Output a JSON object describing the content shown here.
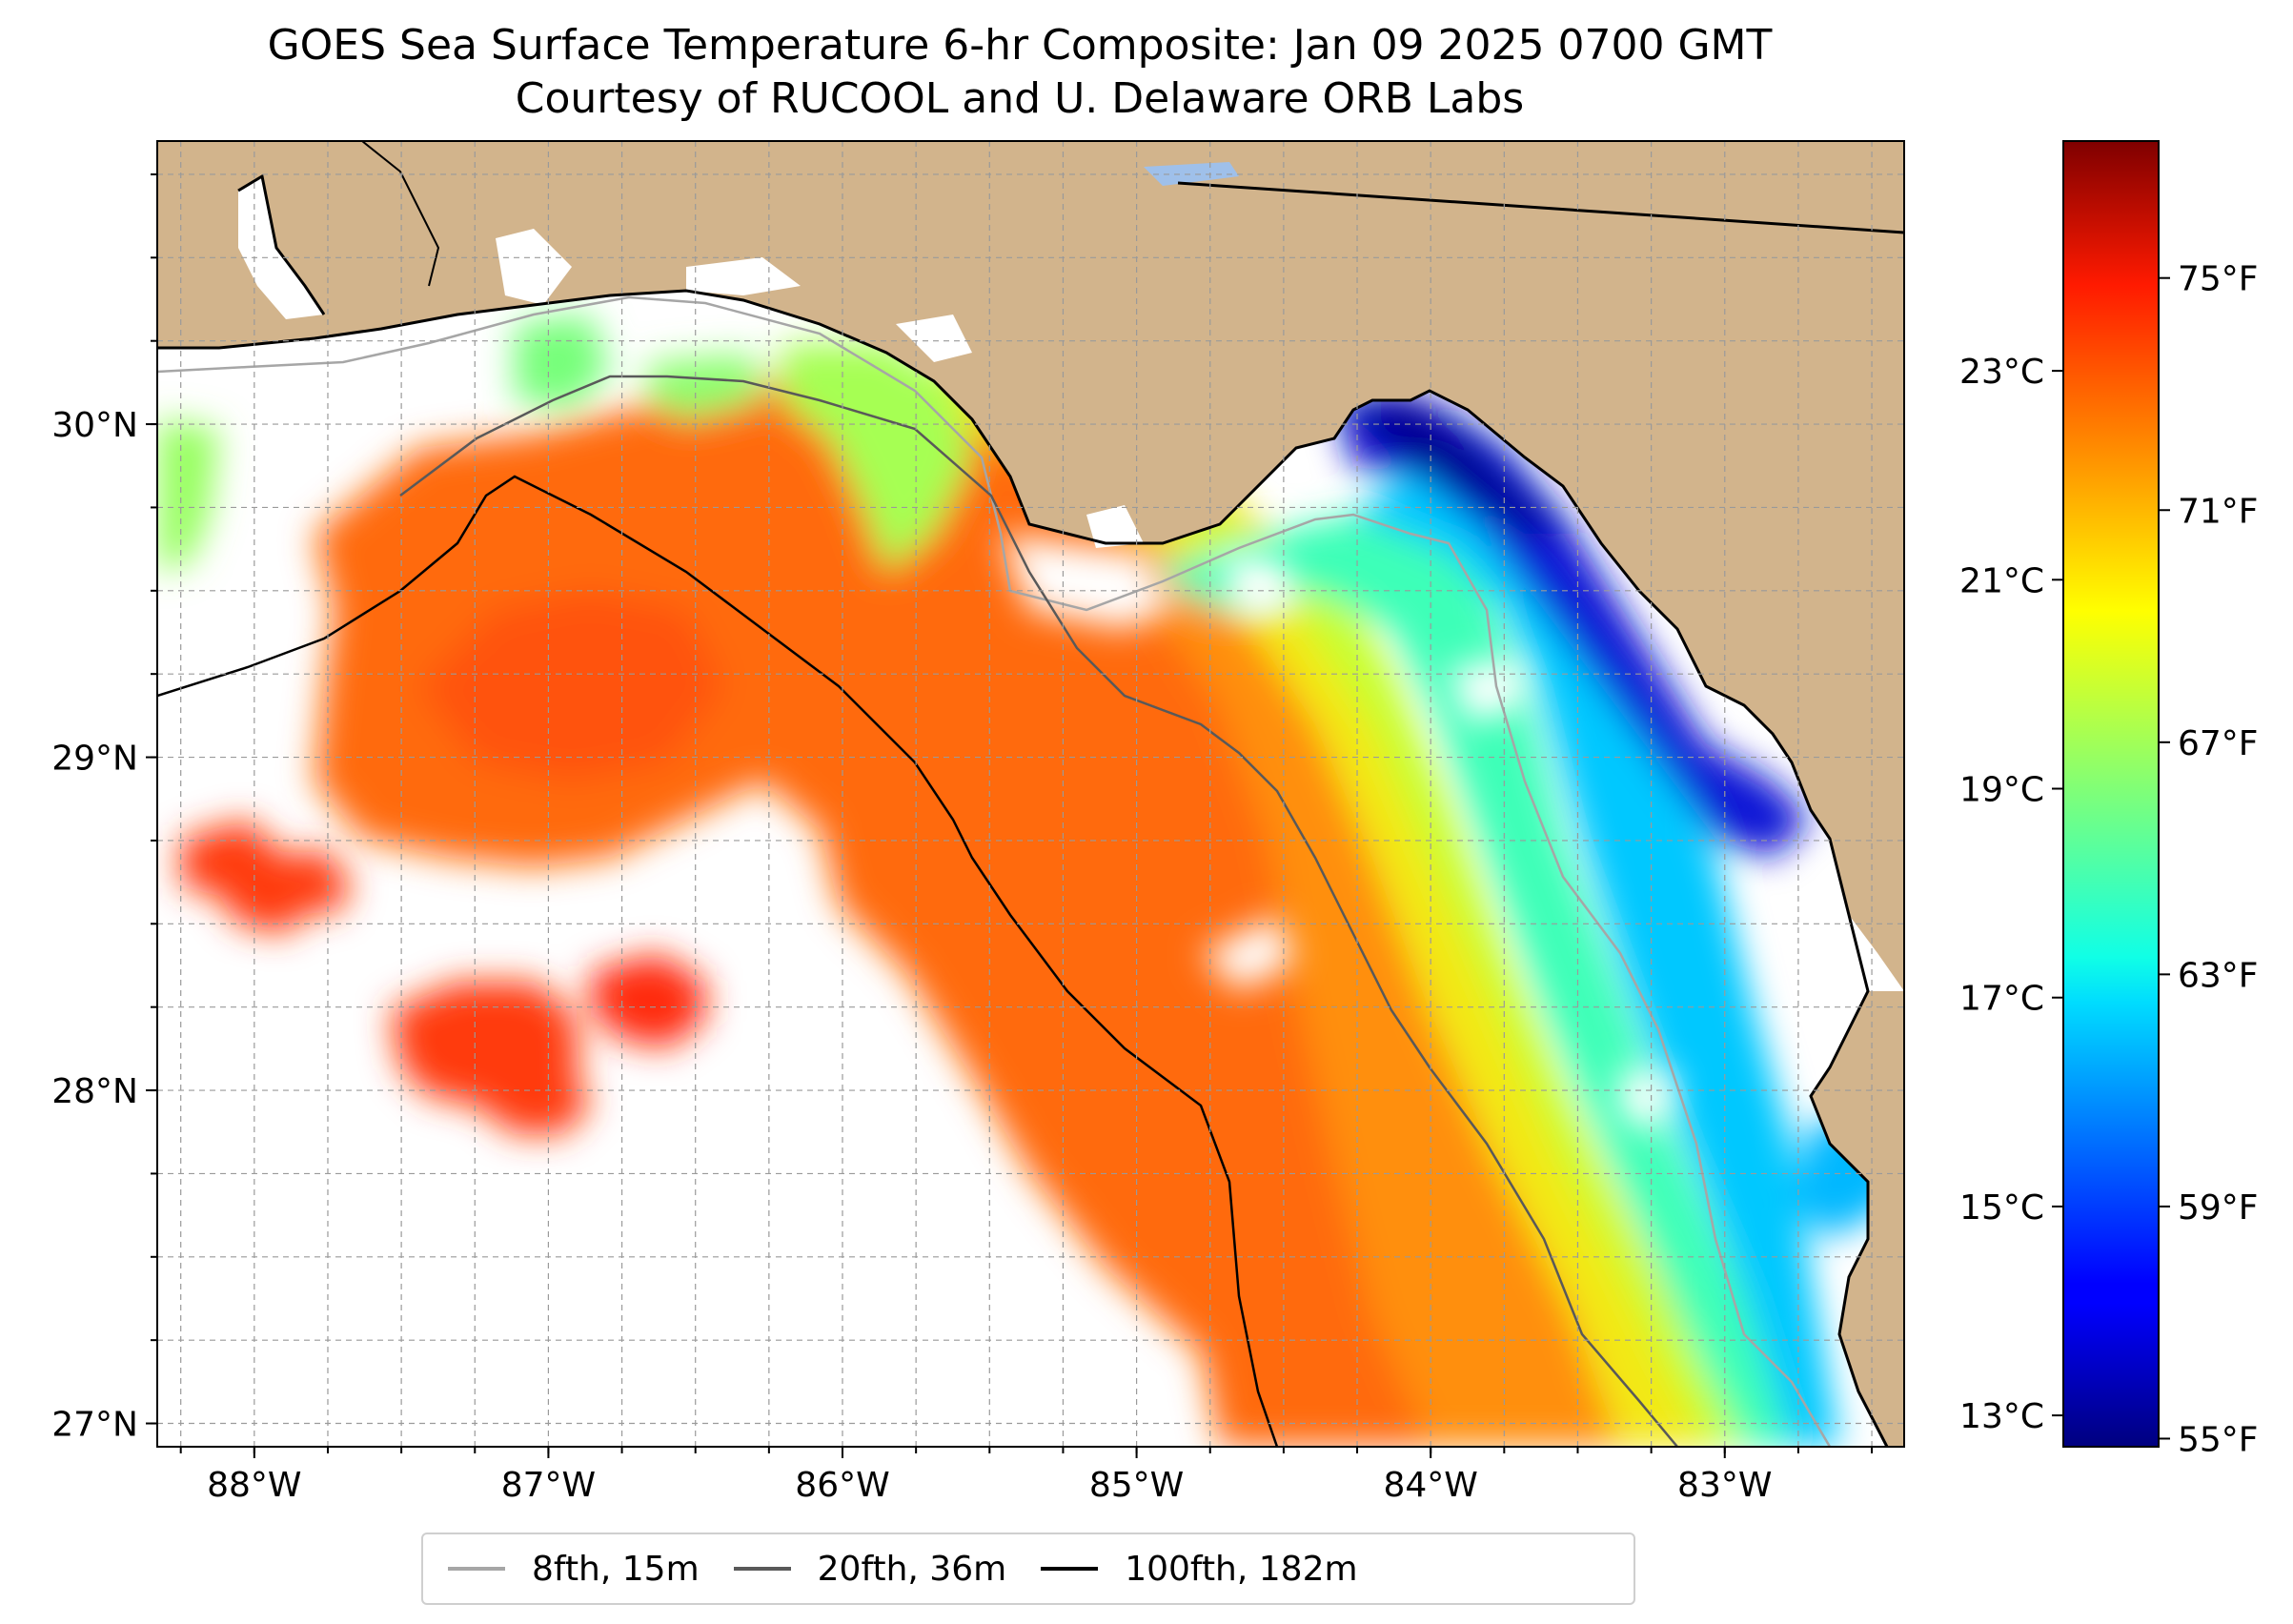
{
  "title": {
    "line1": "GOES Sea Surface Temperature 6-hr Composite: Jan 09 2025 0700 GMT",
    "line2": "Courtesy of RUCOOL and U. Delaware ORB Labs"
  },
  "map": {
    "extent": {
      "lon_min": -88.33,
      "lon_max": -82.39,
      "lat_min": 26.93,
      "lat_max": 30.85
    },
    "land_color": "#d2b48c",
    "ocean_nodata_color": "#ffffff",
    "gridlines": true,
    "lat_ticks": [
      {
        "value": 30,
        "label": "30°N"
      },
      {
        "value": 29,
        "label": "29°N"
      },
      {
        "value": 28,
        "label": "28°N"
      },
      {
        "value": 27,
        "label": "27°N"
      }
    ],
    "lon_ticks": [
      {
        "value": -88,
        "label": "88°W"
      },
      {
        "value": -87,
        "label": "87°W"
      },
      {
        "value": -86,
        "label": "86°W"
      },
      {
        "value": -85,
        "label": "85°W"
      },
      {
        "value": -84,
        "label": "84°W"
      },
      {
        "value": -83,
        "label": "83°W"
      }
    ]
  },
  "colorbar": {
    "colormap": "jet",
    "celsius_ticks": [
      {
        "value": 23,
        "label": "23°C"
      },
      {
        "value": 21,
        "label": "21°C"
      },
      {
        "value": 19,
        "label": "19°C"
      },
      {
        "value": 17,
        "label": "17°C"
      },
      {
        "value": 15,
        "label": "15°C"
      },
      {
        "value": 13,
        "label": "13°C"
      }
    ],
    "fahrenheit_ticks": [
      {
        "value": 75,
        "label": "75°F"
      },
      {
        "value": 71,
        "label": "71°F"
      },
      {
        "value": 67,
        "label": "67°F"
      },
      {
        "value": 63,
        "label": "63°F"
      },
      {
        "value": 59,
        "label": "59°F"
      },
      {
        "value": 55,
        "label": "55°F"
      }
    ]
  },
  "legend": {
    "items": [
      {
        "label": "8fth, 15m",
        "color": "#a6a6a6"
      },
      {
        "label": "20fth, 36m",
        "color": "#595959"
      },
      {
        "label": "100fth, 182m",
        "color": "#000000"
      }
    ]
  }
}
